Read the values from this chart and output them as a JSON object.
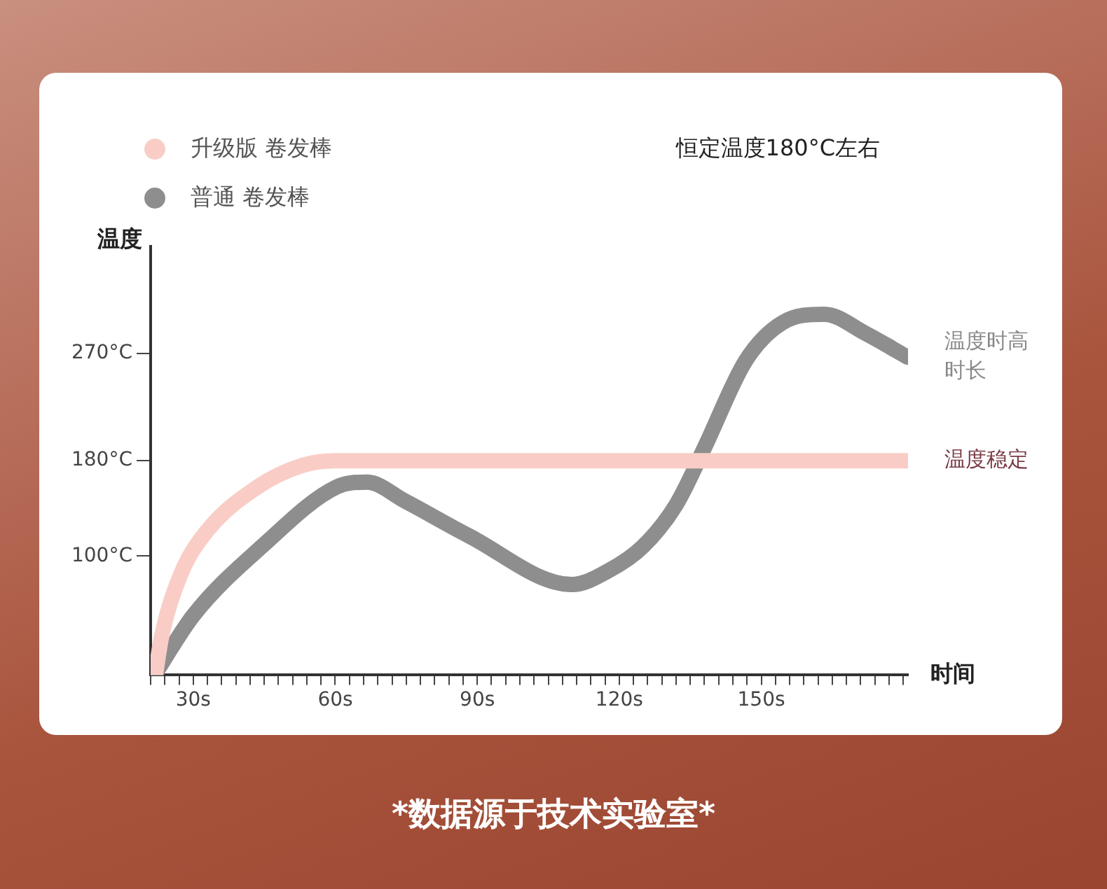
{
  "chart_data": {
    "type": "line",
    "xlabel": "时间",
    "ylabel": "温度",
    "xlim": [
      21,
      181
    ],
    "ylim": [
      0,
      360
    ],
    "xticks": [
      {
        "value": 21,
        "label": null
      },
      {
        "value": 24,
        "label": null
      },
      {
        "value": 27,
        "label": null
      },
      {
        "value": 30,
        "label": "30s"
      },
      {
        "value": 33,
        "label": null
      },
      {
        "value": 36,
        "label": null
      },
      {
        "value": 39,
        "label": null
      },
      {
        "value": 42,
        "label": null
      },
      {
        "value": 45,
        "label": null
      },
      {
        "value": 48,
        "label": null
      },
      {
        "value": 51,
        "label": null
      },
      {
        "value": 54,
        "label": null
      },
      {
        "value": 57,
        "label": null
      },
      {
        "value": 60,
        "label": "60s"
      },
      {
        "value": 63,
        "label": null
      },
      {
        "value": 66,
        "label": null
      },
      {
        "value": 69,
        "label": null
      },
      {
        "value": 72,
        "label": null
      },
      {
        "value": 75,
        "label": null
      },
      {
        "value": 78,
        "label": null
      },
      {
        "value": 81,
        "label": null
      },
      {
        "value": 84,
        "label": null
      },
      {
        "value": 87,
        "label": null
      },
      {
        "value": 90,
        "label": "90s"
      },
      {
        "value": 93,
        "label": null
      },
      {
        "value": 96,
        "label": null
      },
      {
        "value": 99,
        "label": null
      },
      {
        "value": 102,
        "label": null
      },
      {
        "value": 105,
        "label": null
      },
      {
        "value": 108,
        "label": null
      },
      {
        "value": 111,
        "label": null
      },
      {
        "value": 114,
        "label": null
      },
      {
        "value": 117,
        "label": null
      },
      {
        "value": 120,
        "label": "120s"
      },
      {
        "value": 123,
        "label": null
      },
      {
        "value": 126,
        "label": null
      },
      {
        "value": 129,
        "label": null
      },
      {
        "value": 132,
        "label": null
      },
      {
        "value": 135,
        "label": null
      },
      {
        "value": 138,
        "label": null
      },
      {
        "value": 141,
        "label": null
      },
      {
        "value": 144,
        "label": null
      },
      {
        "value": 147,
        "label": null
      },
      {
        "value": 150,
        "label": "150s"
      },
      {
        "value": 153,
        "label": null
      },
      {
        "value": 156,
        "label": null
      },
      {
        "value": 159,
        "label": null
      },
      {
        "value": 162,
        "label": null
      },
      {
        "value": 165,
        "label": null
      },
      {
        "value": 168,
        "label": null
      },
      {
        "value": 171,
        "label": null
      },
      {
        "value": 174,
        "label": null
      },
      {
        "value": 177,
        "label": null
      },
      {
        "value": 180,
        "label": null
      }
    ],
    "yticks": [
      {
        "value": 100,
        "label": "100°C"
      },
      {
        "value": 180,
        "label": "180°C"
      },
      {
        "value": 270,
        "label": "270°C"
      }
    ],
    "grid": false,
    "legend": "top left",
    "marker": "none",
    "line_style": "solid",
    "series": [
      {
        "name": "升级版 卷发棒",
        "color": "#f9cdc6",
        "x": [
          22,
          23.3,
          27.3,
          32.7,
          43.6,
          53,
          60,
          181
        ],
        "values": [
          0,
          32,
          84,
          120,
          158,
          176,
          180,
          180
        ]
      },
      {
        "name": "普通 卷发棒",
        "color": "#8e8e8e",
        "x": [
          21.8,
          30,
          44.5,
          60.3,
          66.7,
          74.8,
          88.2,
          110,
          117.9,
          125,
          132,
          138,
          146.7,
          154.5,
          163.3,
          172,
          180.9
        ],
        "values": [
          0,
          50,
          108,
          158,
          162,
          146,
          117,
          76,
          88,
          108,
          143,
          191,
          264,
          296,
          303,
          287,
          267
        ]
      }
    ],
    "annotations": [
      "恒定温度180°C左右",
      {
        "text": "温度时高时长",
        "x": 181,
        "y": 267
      },
      {
        "text": "温度稳定",
        "x": 181,
        "y": 180
      },
      "*数据源于技术实验室*"
    ]
  }
}
